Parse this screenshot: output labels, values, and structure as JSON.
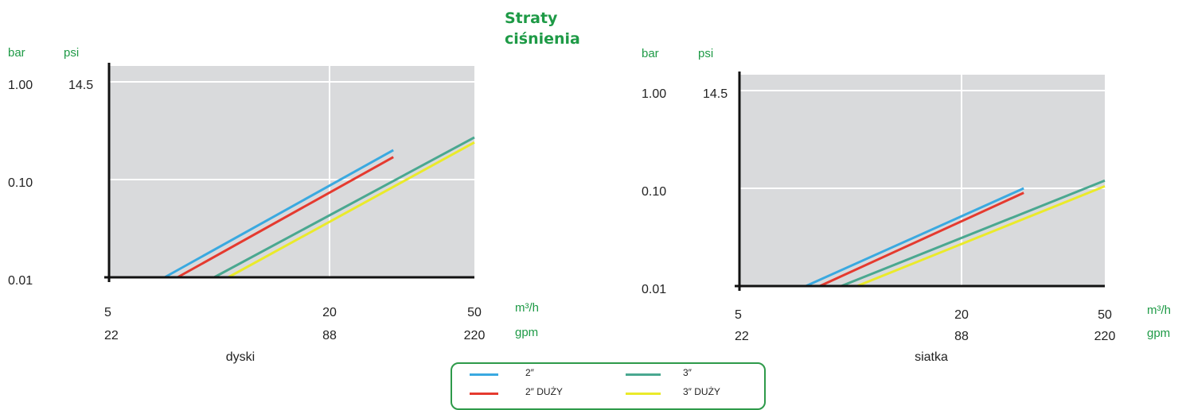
{
  "title": "Straty ciśnienia",
  "colors": {
    "accent_green": "#1e9a46",
    "plot_bg": "#d9dadc",
    "grid": "#ffffff",
    "axis": "#111111"
  },
  "legend": {
    "items": [
      {
        "label": "2″",
        "color": "#3aa9e0"
      },
      {
        "label": "2″ DUŻY",
        "color": "#e53a2f"
      },
      {
        "label": "3″",
        "color": "#4aa890"
      },
      {
        "label": "3″ DUŻY",
        "color": "#eaea2a"
      }
    ]
  },
  "chart_data": [
    {
      "type": "line",
      "caption": "dyski",
      "y_units": [
        "bar",
        "psi"
      ],
      "y_ticks_bar": [
        "1.00",
        "0.10",
        "0.01"
      ],
      "y_ticks_psi": [
        "14.5"
      ],
      "x_units": [
        "m³/h",
        "gpm"
      ],
      "x_ticks_m3h": [
        "5",
        "20",
        "50"
      ],
      "x_ticks_gpm": [
        "22",
        "88",
        "220"
      ],
      "xscale": "log",
      "yscale": "log",
      "xlim": [
        5,
        50
      ],
      "ylim": [
        0.01,
        1.0
      ],
      "series": [
        {
          "name": "2″",
          "x": [
            7.1,
            30
          ],
          "y": [
            0.01,
            0.2
          ]
        },
        {
          "name": "2″ DUŻY",
          "x": [
            7.7,
            30
          ],
          "y": [
            0.01,
            0.17
          ]
        },
        {
          "name": "3″",
          "x": [
            9.7,
            50
          ],
          "y": [
            0.01,
            0.27
          ]
        },
        {
          "name": "3″ DUŻY",
          "x": [
            10.6,
            50
          ],
          "y": [
            0.01,
            0.24
          ]
        }
      ]
    },
    {
      "type": "line",
      "caption": "siatka",
      "y_units": [
        "bar",
        "psi"
      ],
      "y_ticks_bar": [
        "1.00",
        "0.10",
        "0.01"
      ],
      "y_ticks_psi": [
        "14.5"
      ],
      "x_units": [
        "m³/h",
        "gpm"
      ],
      "x_ticks_m3h": [
        "5",
        "20",
        "50"
      ],
      "x_ticks_gpm": [
        "22",
        "88",
        "220"
      ],
      "xscale": "log",
      "yscale": "log",
      "xlim": [
        5,
        50
      ],
      "ylim": [
        0.01,
        1.0
      ],
      "series": [
        {
          "name": "2″",
          "x": [
            7.6,
            30
          ],
          "y": [
            0.01,
            0.1
          ]
        },
        {
          "name": "2″ DUŻY",
          "x": [
            8.3,
            30
          ],
          "y": [
            0.01,
            0.09
          ]
        },
        {
          "name": "3″",
          "x": [
            9.5,
            50
          ],
          "y": [
            0.01,
            0.12
          ]
        },
        {
          "name": "3″ DUŻY",
          "x": [
            10.5,
            50
          ],
          "y": [
            0.01,
            0.105
          ]
        }
      ]
    }
  ]
}
